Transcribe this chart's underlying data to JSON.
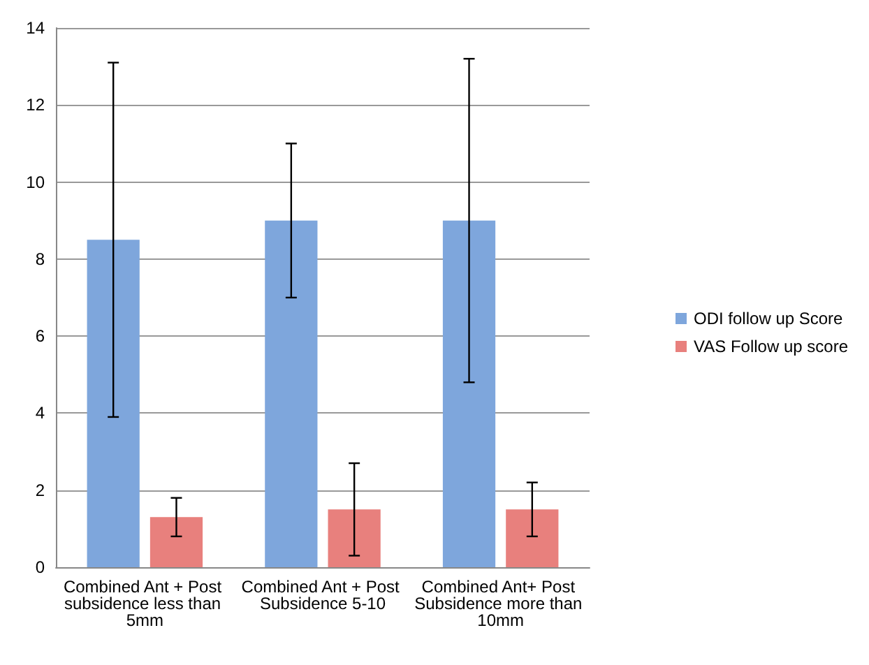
{
  "chart_data": {
    "type": "bar",
    "categories": [
      "Combined Ant + Post subsidence less than 5mm",
      "Combined Ant + Post Subsidence 5-10",
      "Combined Ant+ Post Subsidence more than 10mm"
    ],
    "series": [
      {
        "name": "ODI follow up Score",
        "color": "#7ea6dc",
        "values": [
          8.5,
          9,
          9
        ],
        "errors": [
          [
            3.9,
            13.1
          ],
          [
            7,
            11
          ],
          [
            4.8,
            13.2
          ]
        ]
      },
      {
        "name": "VAS Follow up score",
        "color": "#e8807d",
        "values": [
          1.3,
          1.5,
          1.5
        ],
        "errors": [
          [
            0.8,
            1.8
          ],
          [
            0.3,
            2.7
          ],
          [
            0.8,
            2.2
          ]
        ]
      }
    ],
    "ylim": [
      0,
      14
    ],
    "yticks": [
      0,
      2,
      4,
      6,
      8,
      10,
      12,
      14
    ],
    "grid": "y",
    "legend": "right"
  }
}
